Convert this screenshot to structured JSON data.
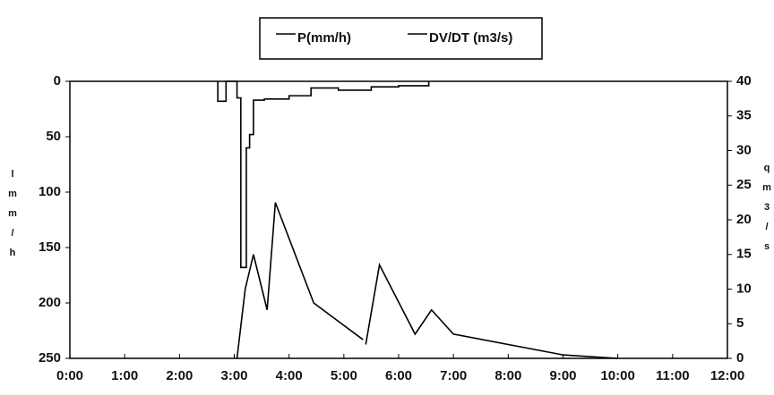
{
  "chart_data": {
    "type": "line",
    "xlim": [
      0,
      12
    ],
    "xticks": [
      {
        "value": 0,
        "label": "0:00"
      },
      {
        "value": 1,
        "label": "1:00"
      },
      {
        "value": 2,
        "label": "2:00"
      },
      {
        "value": 3,
        "label": "3:00"
      },
      {
        "value": 4,
        "label": "4:00"
      },
      {
        "value": 5,
        "label": "5:00"
      },
      {
        "value": 6,
        "label": "6:00"
      },
      {
        "value": 7,
        "label": "7:00"
      },
      {
        "value": 8,
        "label": "8:00"
      },
      {
        "value": 9,
        "label": "9:00"
      },
      {
        "value": 10,
        "label": "10:00"
      },
      {
        "value": 11,
        "label": "11:00"
      },
      {
        "value": 12,
        "label": "12:00"
      }
    ],
    "ylim": [
      0,
      250
    ],
    "y_inverted": true,
    "yticks": [
      0,
      50,
      100,
      150,
      200,
      250
    ],
    "y2lim": [
      0,
      40
    ],
    "y2ticks": [
      0,
      5,
      10,
      15,
      20,
      25,
      30,
      35,
      40
    ],
    "ylabel": [
      "l",
      "m",
      "m",
      "/",
      "h"
    ],
    "y2label": [
      "q",
      "m",
      "3",
      "/",
      "s"
    ],
    "grid": false,
    "legend": "top",
    "series": [
      {
        "name": "P(mm/h)",
        "color": "#000000",
        "axis": "y",
        "x": [
          2.7,
          2.7,
          2.85,
          2.85,
          3.05,
          3.05,
          3.12,
          3.12,
          3.22,
          3.22,
          3.28,
          3.28,
          3.35,
          3.35,
          3.55,
          3.55,
          4.0,
          4.0,
          4.4,
          4.4,
          4.9,
          4.9,
          5.5,
          5.5,
          6.0,
          6.0,
          6.55,
          6.55
        ],
        "values": [
          0,
          18,
          18,
          0,
          0,
          15,
          15,
          168,
          168,
          60,
          60,
          48,
          48,
          17,
          17,
          16,
          16,
          13,
          13,
          6,
          6,
          8,
          8,
          5,
          5,
          4,
          4,
          0
        ]
      },
      {
        "name": "DV/DT (m3/s)",
        "color": "#000000",
        "axis": "y2",
        "x": [
          3.05,
          3.2,
          3.35,
          3.6,
          3.75,
          4.45,
          5.35,
          5.37,
          5.4,
          5.65,
          6.3,
          6.6,
          7.0,
          9.0,
          10.0
        ],
        "values": [
          0,
          10,
          15,
          7,
          22.5,
          8,
          2.7,
          null,
          2,
          13.5,
          3.5,
          7,
          3.5,
          0.5,
          0
        ]
      }
    ]
  }
}
